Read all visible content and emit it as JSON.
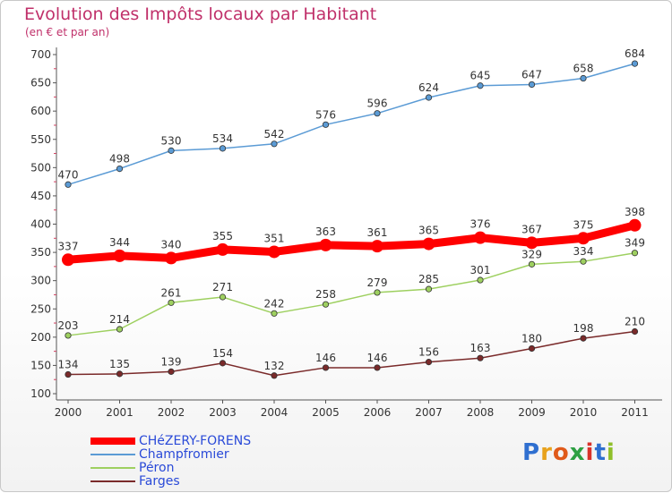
{
  "title": "Evolution des Impôts locaux par Habitant",
  "subtitle": "(en € et par an)",
  "logo": {
    "letters": [
      "P",
      "r",
      "o",
      "x",
      "i",
      "t",
      "i"
    ],
    "colors": [
      "#2f6fd0",
      "#e8a21c",
      "#e05a1a",
      "#2ea043",
      "#d9322a",
      "#2f6fd0",
      "#8fbf2a"
    ]
  },
  "chart_data": {
    "type": "line",
    "x": [
      "2000",
      "2001",
      "2002",
      "2003",
      "2004",
      "2005",
      "2006",
      "2007",
      "2008",
      "2009",
      "2010",
      "2011"
    ],
    "ylim": [
      100,
      700
    ],
    "yticks": [
      100,
      150,
      200,
      250,
      300,
      350,
      400,
      450,
      500,
      550,
      600,
      650,
      700
    ],
    "grid": false,
    "legend_position": "bottom-left",
    "series": [
      {
        "name": "CHéZERY-FORENS",
        "color": "#ff0000",
        "values": [
          337,
          344,
          340,
          355,
          351,
          363,
          361,
          365,
          376,
          367,
          375,
          398
        ]
      },
      {
        "name": "Champfromier",
        "color": "#5b9bd5",
        "values": [
          470,
          498,
          530,
          534,
          542,
          576,
          596,
          624,
          645,
          647,
          658,
          684
        ]
      },
      {
        "name": "Péron",
        "color": "#9ed060",
        "values": [
          203,
          214,
          261,
          271,
          242,
          258,
          279,
          285,
          301,
          329,
          334,
          349
        ]
      },
      {
        "name": "Farges",
        "color": "#7a2a2a",
        "values": [
          134,
          135,
          139,
          154,
          132,
          146,
          146,
          156,
          163,
          180,
          198,
          210
        ]
      }
    ]
  }
}
